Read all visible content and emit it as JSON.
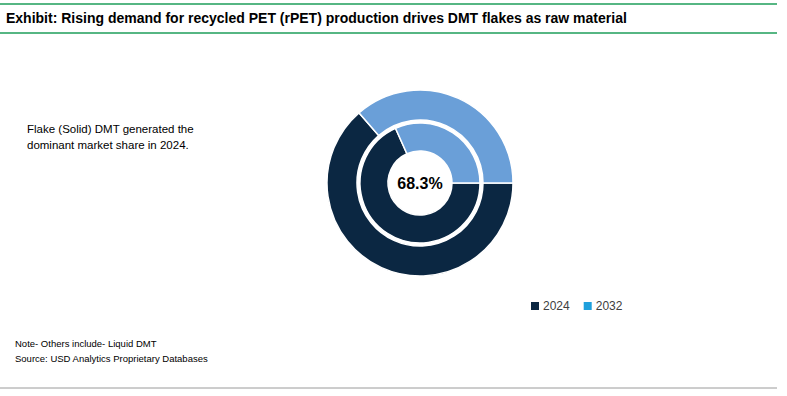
{
  "chart_data": {
    "type": "pie",
    "title": "Exhibit: Rising demand for recycled PET (rPET) production drives DMT flakes as raw material",
    "annotation": [
      "Flake (Solid) DMT generated the",
      "dominant market share in 2024."
    ],
    "center_label": "68.3%",
    "note": "Note- Others include- Liquid DMT",
    "source": "Source: USD Analytics Proprietary Databases",
    "colors": [
      "#0b2742",
      "#6a9fd8"
    ],
    "legend": "bottom-right",
    "series": [
      {
        "name": "2024",
        "color": "#0b2742",
        "values": [
          68.3,
          31.7
        ]
      },
      {
        "name": "2032",
        "color": "#1fa0dc",
        "values": [
          63.6,
          36.4
        ]
      }
    ]
  }
}
